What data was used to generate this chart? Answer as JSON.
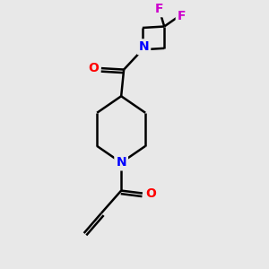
{
  "background_color": "#e8e8e8",
  "bond_color": "#000000",
  "N_color": "#0000ff",
  "O_color": "#ff0000",
  "F_color": "#cc00cc",
  "line_width": 1.8,
  "figsize": [
    3.0,
    3.0
  ],
  "dpi": 100,
  "xlim": [
    0,
    10
  ],
  "ylim": [
    0,
    10
  ]
}
